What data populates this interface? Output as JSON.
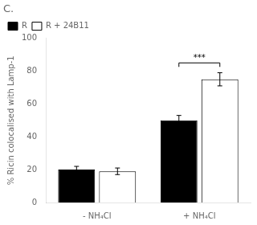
{
  "chart_data": {
    "type": "bar",
    "title": "C.",
    "categories": [
      "- NH₄Cl",
      "+ NH₄Cl"
    ],
    "series": [
      {
        "name": "R",
        "color": "#000000",
        "values": [
          20,
          50
        ],
        "errors": [
          2,
          3
        ]
      },
      {
        "name": "R + 24B11",
        "color": "#ffffff",
        "values": [
          19,
          75
        ],
        "errors": [
          2,
          4
        ]
      }
    ],
    "ylabel": "% Ricin colocalised with Lamp-1",
    "ylim": [
      0,
      100
    ],
    "yticks": [
      0,
      20,
      40,
      60,
      80,
      100
    ],
    "grid": false,
    "legend": "upper left",
    "annotations": [
      {
        "text": "***",
        "category": "+ NH₄Cl",
        "series": [
          "R",
          "R + 24B11"
        ],
        "y": 85
      }
    ]
  }
}
